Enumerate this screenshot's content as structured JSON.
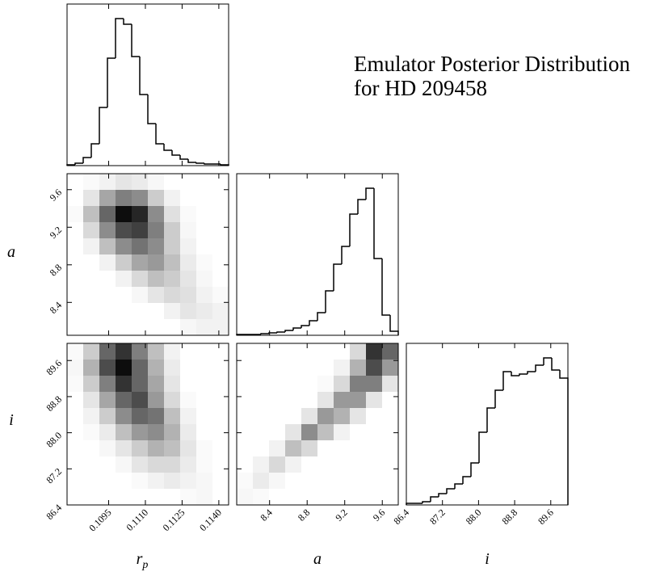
{
  "figure": {
    "title": [
      "Emulator Posterior Distribution",
      "for HD 209458"
    ],
    "labels": [
      {
        "text": "r",
        "sub": "p"
      },
      {
        "text": "a"
      },
      {
        "text": "i"
      }
    ]
  },
  "chart_data": [
    {
      "type": "histogram",
      "xlim": [
        0.1078,
        0.1144
      ],
      "ylim": [
        0,
        200
      ],
      "bins": [
        0.1078,
        0.10813,
        0.10846,
        0.10879,
        0.10912,
        0.10945,
        0.10978,
        0.11011,
        0.11044,
        0.11077,
        0.1111,
        0.11143,
        0.11176,
        0.11209,
        0.11242,
        0.11275,
        0.11308,
        0.11341,
        0.11374,
        0.11407,
        0.1144
      ],
      "counts": [
        1,
        3,
        10,
        27,
        72,
        133,
        182,
        175,
        135,
        88,
        52,
        27,
        19,
        13,
        8,
        4,
        3,
        2,
        2,
        1
      ],
      "xticks": [
        0.1095,
        {
          "value": 0.111,
          "label": "0.1110"
        },
        0.1125,
        {
          "value": 0.114,
          "label": "0.1140"
        }
      ],
      "color": "#000000"
    },
    {
      "type": "hist2d",
      "xlim": [
        0.1078,
        0.1144
      ],
      "ylim": [
        8.05,
        9.77
      ],
      "xticks": [
        0.1095,
        {
          "value": 0.111,
          "label": "0.1110"
        },
        0.1125,
        {
          "value": 0.114,
          "label": "0.1140"
        }
      ],
      "yticks": [
        8.4,
        8.8,
        9.2,
        9.6
      ],
      "color": "#000000",
      "density": [
        [
          0,
          0,
          0,
          0,
          0,
          0,
          0,
          0.03,
          0.05,
          0.05
        ],
        [
          0,
          0,
          0,
          0,
          0,
          0,
          0.05,
          0.1,
          0.08,
          0.05
        ],
        [
          0,
          0,
          0,
          0,
          0.03,
          0.1,
          0.15,
          0.12,
          0.05,
          0.02
        ],
        [
          0,
          0,
          0,
          0.05,
          0.15,
          0.25,
          0.2,
          0.1,
          0.03,
          0
        ],
        [
          0,
          0,
          0.05,
          0.2,
          0.35,
          0.4,
          0.25,
          0.08,
          0.02,
          0
        ],
        [
          0,
          0.05,
          0.25,
          0.45,
          0.55,
          0.45,
          0.2,
          0.05,
          0,
          0
        ],
        [
          0,
          0.15,
          0.45,
          0.7,
          0.75,
          0.5,
          0.2,
          0.03,
          0,
          0
        ],
        [
          0.02,
          0.25,
          0.6,
          0.95,
          0.85,
          0.45,
          0.12,
          0.02,
          0,
          0
        ],
        [
          0,
          0.1,
          0.35,
          0.5,
          0.45,
          0.2,
          0.05,
          0,
          0,
          0
        ],
        [
          0,
          0.02,
          0.05,
          0.1,
          0.08,
          0.03,
          0,
          0,
          0,
          0
        ]
      ]
    },
    {
      "type": "histogram",
      "xlim": [
        8.05,
        9.77
      ],
      "ylim": [
        0,
        200
      ],
      "bins": [
        8.05,
        8.136,
        8.222,
        8.308,
        8.394,
        8.48,
        8.566,
        8.652,
        8.738,
        8.824,
        8.91,
        8.996,
        9.082,
        9.168,
        9.254,
        9.34,
        9.426,
        9.512,
        9.598,
        9.684,
        9.77
      ],
      "counts": [
        1,
        1,
        1,
        2,
        3,
        4,
        6,
        9,
        12,
        18,
        28,
        55,
        88,
        110,
        150,
        168,
        182,
        95,
        25,
        5
      ],
      "xticks": [
        8.4,
        8.8,
        9.2,
        9.6
      ],
      "color": "#000000"
    },
    {
      "type": "hist2d",
      "xlim": [
        0.1078,
        0.1144
      ],
      "ylim": [
        86.4,
        89.98
      ],
      "xticks": [
        0.1095,
        {
          "value": 0.111,
          "label": "0.1110"
        },
        0.1125,
        {
          "value": 0.114,
          "label": "0.1140"
        }
      ],
      "yticks": [
        86.4,
        87.2,
        {
          "value": 88,
          "label": "88.0"
        },
        88.8,
        89.6
      ],
      "color": "#000000",
      "density": [
        [
          0,
          0,
          0,
          0,
          0,
          0,
          0,
          0.02,
          0.03,
          0
        ],
        [
          0,
          0,
          0,
          0,
          0.02,
          0.05,
          0.08,
          0.05,
          0.03,
          0
        ],
        [
          0,
          0,
          0,
          0.03,
          0.1,
          0.15,
          0.15,
          0.08,
          0.02,
          0
        ],
        [
          0,
          0,
          0.03,
          0.1,
          0.2,
          0.3,
          0.25,
          0.1,
          0.02,
          0
        ],
        [
          0,
          0.02,
          0.08,
          0.25,
          0.4,
          0.45,
          0.3,
          0.08,
          0,
          0
        ],
        [
          0,
          0.05,
          0.2,
          0.45,
          0.6,
          0.55,
          0.25,
          0.05,
          0,
          0
        ],
        [
          0,
          0.1,
          0.35,
          0.6,
          0.7,
          0.4,
          0.15,
          0.02,
          0,
          0
        ],
        [
          0.02,
          0.2,
          0.5,
          0.8,
          0.6,
          0.35,
          0.1,
          0,
          0,
          0
        ],
        [
          0.03,
          0.3,
          0.7,
          0.95,
          0.6,
          0.3,
          0.08,
          0,
          0,
          0
        ],
        [
          0.02,
          0.2,
          0.6,
          0.8,
          0.5,
          0.25,
          0.05,
          0,
          0,
          0
        ]
      ]
    },
    {
      "type": "hist2d",
      "xlim": [
        8.05,
        9.77
      ],
      "ylim": [
        86.4,
        89.98
      ],
      "xticks": [
        8.4,
        8.8,
        9.2,
        9.6
      ],
      "yticks": [
        86.4,
        87.2,
        {
          "value": 88,
          "label": "88.0"
        },
        88.8,
        89.6
      ],
      "color": "#000000",
      "density": [
        [
          0.03,
          0.02,
          0,
          0,
          0,
          0,
          0,
          0,
          0,
          0
        ],
        [
          0.02,
          0.08,
          0.03,
          0,
          0,
          0,
          0,
          0,
          0,
          0
        ],
        [
          0,
          0.05,
          0.15,
          0.05,
          0,
          0,
          0,
          0,
          0,
          0
        ],
        [
          0,
          0,
          0.05,
          0.25,
          0.15,
          0,
          0,
          0,
          0,
          0
        ],
        [
          0,
          0,
          0,
          0.1,
          0.45,
          0.25,
          0.05,
          0,
          0,
          0
        ],
        [
          0,
          0,
          0,
          0,
          0.1,
          0.4,
          0.3,
          0.1,
          0,
          0
        ],
        [
          0,
          0,
          0,
          0,
          0,
          0.1,
          0.4,
          0.4,
          0.1,
          0
        ],
        [
          0,
          0,
          0,
          0,
          0,
          0.02,
          0.15,
          0.5,
          0.5,
          0.1
        ],
        [
          0,
          0,
          0,
          0,
          0,
          0,
          0.05,
          0.3,
          0.7,
          0.4
        ],
        [
          0,
          0,
          0,
          0,
          0,
          0,
          0,
          0.15,
          0.8,
          0.6
        ]
      ]
    },
    {
      "type": "histogram",
      "xlim": [
        86.4,
        89.98
      ],
      "ylim": [
        0,
        200
      ],
      "bins": [
        86.4,
        86.579,
        86.758,
        86.937,
        87.116,
        87.295,
        87.474,
        87.653,
        87.832,
        88.011,
        88.19,
        88.369,
        88.548,
        88.727,
        88.906,
        89.085,
        89.264,
        89.443,
        89.622,
        89.801,
        89.98
      ],
      "counts": [
        2,
        2,
        4,
        10,
        14,
        20,
        26,
        35,
        52,
        90,
        120,
        142,
        165,
        160,
        162,
        165,
        173,
        182,
        167,
        157
      ],
      "xticks": [
        86.4,
        87.2,
        {
          "value": 88,
          "label": "88.0"
        },
        88.8,
        89.6
      ],
      "color": "#000000"
    }
  ]
}
